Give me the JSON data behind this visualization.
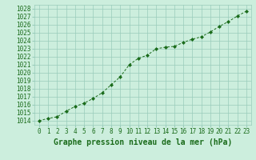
{
  "x": [
    0,
    1,
    2,
    3,
    4,
    5,
    6,
    7,
    8,
    9,
    10,
    11,
    12,
    13,
    14,
    15,
    16,
    17,
    18,
    19,
    20,
    21,
    22,
    23
  ],
  "y": [
    1014.0,
    1014.3,
    1014.5,
    1015.2,
    1015.8,
    1016.2,
    1016.8,
    1017.5,
    1018.5,
    1019.5,
    1021.0,
    1021.8,
    1022.2,
    1023.0,
    1023.2,
    1023.3,
    1023.8,
    1024.2,
    1024.5,
    1025.1,
    1025.8,
    1026.4,
    1027.1,
    1027.7
  ],
  "line_color": "#1a6b1a",
  "marker": "D",
  "marker_size": 2,
  "bg_color": "#cceedd",
  "grid_color": "#99ccbb",
  "title": "Graphe pression niveau de la mer (hPa)",
  "title_fontsize": 7,
  "ylim": [
    1013.5,
    1028.5
  ],
  "yticks": [
    1014,
    1015,
    1016,
    1017,
    1018,
    1019,
    1020,
    1021,
    1022,
    1023,
    1024,
    1025,
    1026,
    1027,
    1028
  ],
  "xticks": [
    0,
    1,
    2,
    3,
    4,
    5,
    6,
    7,
    8,
    9,
    10,
    11,
    12,
    13,
    14,
    15,
    16,
    17,
    18,
    19,
    20,
    21,
    22,
    23
  ],
  "tick_fontsize": 5.5,
  "tick_color": "#1a6b1a"
}
